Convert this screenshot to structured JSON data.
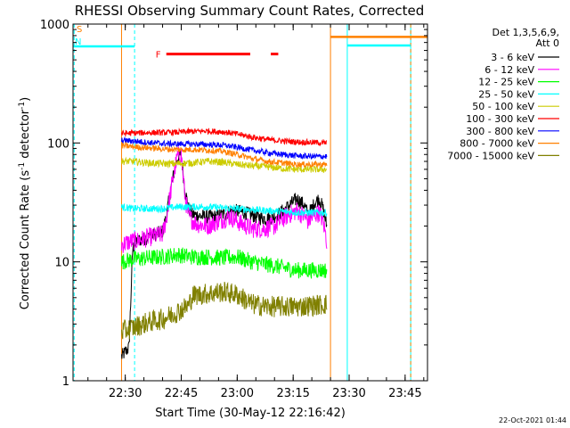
{
  "chart_data": {
    "type": "line",
    "title": "RHESSI Observing Summary Count Rates, Corrected",
    "xlabel": "Start Time (30-May-12 22:16:42)",
    "ylabel_main": "Corrected Count Rate (s",
    "ylabel_sup1": "-1",
    "ylabel_mid": " detector",
    "ylabel_sup2": "-1",
    "ylabel_end": ")",
    "yscale": "log",
    "ylim": [
      1,
      1000
    ],
    "xlim_minutes_from_2216": [
      0,
      95
    ],
    "x_ticks": [
      {
        "label": "22:30",
        "min": 14
      },
      {
        "label": "22:45",
        "min": 29
      },
      {
        "label": "23:00",
        "min": 44
      },
      {
        "label": "23:15",
        "min": 59
      },
      {
        "label": "23:30",
        "min": 74
      },
      {
        "label": "23:45",
        "min": 89
      }
    ],
    "y_ticks": [
      {
        "label": "1",
        "value": 1
      },
      {
        "label": "10",
        "value": 10
      },
      {
        "label": "100",
        "value": 100
      },
      {
        "label": "1000",
        "value": 1000
      }
    ],
    "legend_header": [
      "Det 1,3,5,6,9,",
      "Att 0"
    ],
    "data_window_min": [
      13,
      68
    ],
    "series": [
      {
        "name": "3 - 6 keV",
        "color": "#000000",
        "points": [
          [
            13,
            1.6
          ],
          [
            15,
            1.9
          ],
          [
            16,
            13
          ],
          [
            17,
            15
          ],
          [
            20,
            16
          ],
          [
            24,
            18
          ],
          [
            25,
            24
          ],
          [
            26,
            38
          ],
          [
            27,
            55
          ],
          [
            28,
            75
          ],
          [
            29,
            80
          ],
          [
            30,
            40
          ],
          [
            31,
            28
          ],
          [
            32,
            25
          ],
          [
            35,
            24
          ],
          [
            38,
            24
          ],
          [
            40,
            25
          ],
          [
            43,
            27
          ],
          [
            46,
            26
          ],
          [
            49,
            24
          ],
          [
            52,
            23
          ],
          [
            55,
            25
          ],
          [
            58,
            30
          ],
          [
            60,
            34
          ],
          [
            62,
            30
          ],
          [
            63,
            25
          ],
          [
            65,
            32
          ],
          [
            66,
            34
          ],
          [
            67,
            28
          ],
          [
            68,
            20
          ]
        ]
      },
      {
        "name": "6 - 12 keV",
        "color": "#ff00ff",
        "points": [
          [
            13,
            14
          ],
          [
            16,
            15
          ],
          [
            17,
            15
          ],
          [
            20,
            16
          ],
          [
            24,
            17
          ],
          [
            25,
            23
          ],
          [
            26,
            36
          ],
          [
            27,
            55
          ],
          [
            28,
            78
          ],
          [
            29,
            80
          ],
          [
            30,
            35
          ],
          [
            31,
            24
          ],
          [
            33,
            21
          ],
          [
            36,
            20
          ],
          [
            39,
            22
          ],
          [
            42,
            24
          ],
          [
            45,
            21
          ],
          [
            48,
            19
          ],
          [
            51,
            19
          ],
          [
            54,
            20
          ],
          [
            57,
            24
          ],
          [
            60,
            27
          ],
          [
            62,
            24
          ],
          [
            63,
            22
          ],
          [
            65,
            25
          ],
          [
            66,
            26
          ],
          [
            67,
            22
          ],
          [
            68,
            15
          ]
        ]
      },
      {
        "name": "12 - 25 keV",
        "color": "#00ff00",
        "points": [
          [
            13,
            10
          ],
          [
            16,
            10.5
          ],
          [
            20,
            10.8
          ],
          [
            24,
            11
          ],
          [
            28,
            11.5
          ],
          [
            32,
            11
          ],
          [
            36,
            11
          ],
          [
            40,
            10.8
          ],
          [
            44,
            11
          ],
          [
            48,
            10
          ],
          [
            52,
            9.5
          ],
          [
            56,
            9
          ],
          [
            60,
            8.5
          ],
          [
            64,
            8.5
          ],
          [
            68,
            8.5
          ]
        ]
      },
      {
        "name": "25 - 50 keV",
        "color": "#00ffff",
        "points": [
          [
            13,
            29
          ],
          [
            16,
            28
          ],
          [
            20,
            28
          ],
          [
            24,
            28
          ],
          [
            28,
            29
          ],
          [
            32,
            29
          ],
          [
            36,
            29
          ],
          [
            40,
            28.5
          ],
          [
            44,
            28
          ],
          [
            48,
            27.5
          ],
          [
            52,
            27
          ],
          [
            56,
            26.5
          ],
          [
            60,
            26
          ],
          [
            64,
            26
          ],
          [
            68,
            26
          ]
        ]
      },
      {
        "name": "50 - 100 keV",
        "color": "#cccc00",
        "points": [
          [
            13,
            70
          ],
          [
            16,
            70
          ],
          [
            20,
            68
          ],
          [
            24,
            67
          ],
          [
            28,
            67
          ],
          [
            32,
            68
          ],
          [
            36,
            70
          ],
          [
            40,
            69
          ],
          [
            44,
            66
          ],
          [
            48,
            64
          ],
          [
            52,
            63
          ],
          [
            56,
            61
          ],
          [
            60,
            60
          ],
          [
            64,
            60
          ],
          [
            68,
            60
          ]
        ]
      },
      {
        "name": "100 - 300 keV",
        "color": "#ff0000",
        "points": [
          [
            13,
            120
          ],
          [
            16,
            121
          ],
          [
            20,
            122
          ],
          [
            24,
            122
          ],
          [
            28,
            123
          ],
          [
            32,
            125
          ],
          [
            36,
            126
          ],
          [
            40,
            124
          ],
          [
            44,
            119
          ],
          [
            48,
            112
          ],
          [
            52,
            107
          ],
          [
            56,
            104
          ],
          [
            60,
            102
          ],
          [
            64,
            101
          ],
          [
            68,
            100
          ]
        ]
      },
      {
        "name": "300 - 800 keV",
        "color": "#0000ff",
        "points": [
          [
            13,
            105
          ],
          [
            16,
            104
          ],
          [
            20,
            101
          ],
          [
            24,
            99
          ],
          [
            28,
            98
          ],
          [
            32,
            98
          ],
          [
            36,
            97
          ],
          [
            40,
            96
          ],
          [
            44,
            92
          ],
          [
            48,
            87
          ],
          [
            52,
            83
          ],
          [
            56,
            80
          ],
          [
            60,
            78
          ],
          [
            64,
            77
          ],
          [
            68,
            77
          ]
        ]
      },
      {
        "name": "800 - 7000 keV",
        "color": "#ff8000",
        "points": [
          [
            13,
            95
          ],
          [
            16,
            93
          ],
          [
            20,
            91
          ],
          [
            24,
            89
          ],
          [
            28,
            88
          ],
          [
            32,
            88
          ],
          [
            36,
            87
          ],
          [
            40,
            85
          ],
          [
            44,
            80
          ],
          [
            48,
            74
          ],
          [
            52,
            70
          ],
          [
            56,
            68
          ],
          [
            60,
            66
          ],
          [
            64,
            66
          ],
          [
            68,
            66
          ]
        ]
      },
      {
        "name": "7000 - 15000 keV",
        "color": "#808000",
        "points": [
          [
            13,
            2.6
          ],
          [
            16,
            2.8
          ],
          [
            20,
            3.1
          ],
          [
            24,
            3.3
          ],
          [
            28,
            3.8
          ],
          [
            31,
            4.3
          ],
          [
            32,
            5.2
          ],
          [
            36,
            5.4
          ],
          [
            40,
            5.6
          ],
          [
            44,
            5.3
          ],
          [
            48,
            4.4
          ],
          [
            52,
            4.2
          ],
          [
            56,
            4.2
          ],
          [
            60,
            4.2
          ],
          [
            64,
            4.3
          ],
          [
            68,
            4.4
          ]
        ]
      }
    ],
    "flags": [
      {
        "label": "S",
        "color": "#ff8000",
        "x0": -1,
        "x1": 0,
        "level": 900
      },
      {
        "label": "N",
        "color": "#00ffff",
        "x0": 0,
        "x1": 16.5,
        "level": 650
      },
      {
        "label": "",
        "color": "#ff8000",
        "x0": 69,
        "x1": 95,
        "level": 780
      },
      {
        "label": "",
        "color": "#00ffff",
        "x0": 73.5,
        "x1": 90.5,
        "level": 660
      },
      {
        "label": "F",
        "color": "#ff0000",
        "x0": 25,
        "x1": 47.5,
        "level": 560
      },
      {
        "label": "",
        "color": "#ff0000",
        "x0": 53,
        "x1": 55,
        "level": 560
      }
    ],
    "vlines": [
      {
        "color": "#ff8000",
        "at": 13,
        "style": "solid"
      },
      {
        "color": "#00ffff",
        "at": 16.5,
        "style": "dash"
      },
      {
        "color": "#ff8000",
        "at": 69,
        "style": "solid"
      },
      {
        "color": "#00ffff",
        "at": 73.5,
        "style": "solid"
      },
      {
        "color": "#00ffff",
        "at": 90.5,
        "style": "solid"
      },
      {
        "color": "#ff8000",
        "at": 90.5,
        "style": "dash"
      },
      {
        "color": "#00ffff",
        "at": 0.3,
        "style": "dash"
      }
    ]
  },
  "footer": {
    "timestamp": "22-Oct-2021 01:44"
  }
}
